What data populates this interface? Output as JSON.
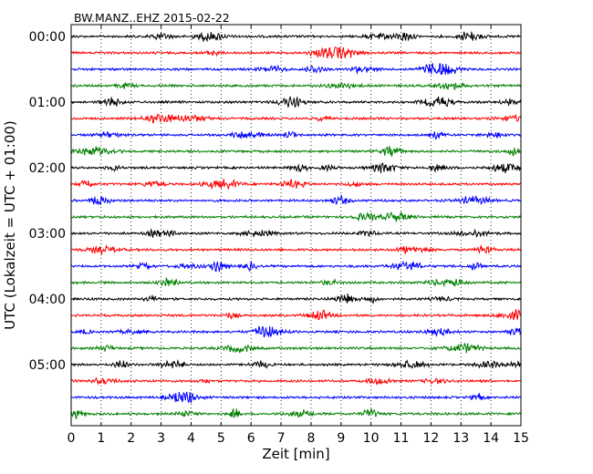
{
  "chart_data": {
    "type": "line",
    "title": "BW.MANZ..EHZ 2015-02-22",
    "xlabel": "Zeit  [min]",
    "ylabel": "UTC (Lokalzeit = UTC + 01:00)",
    "xlim": [
      0,
      15
    ],
    "x_ticks": [
      0,
      1,
      2,
      3,
      4,
      5,
      6,
      7,
      8,
      9,
      10,
      11,
      12,
      13,
      14,
      15
    ],
    "y_tick_labels": [
      "00:00",
      "01:00",
      "02:00",
      "03:00",
      "04:00",
      "05:00"
    ],
    "trace_count": 24,
    "trace_interval_minutes": 15,
    "grid": "vertical-dotted",
    "series_colors": [
      "#000000",
      "#ff0000",
      "#0000ff",
      "#007f00"
    ]
  }
}
